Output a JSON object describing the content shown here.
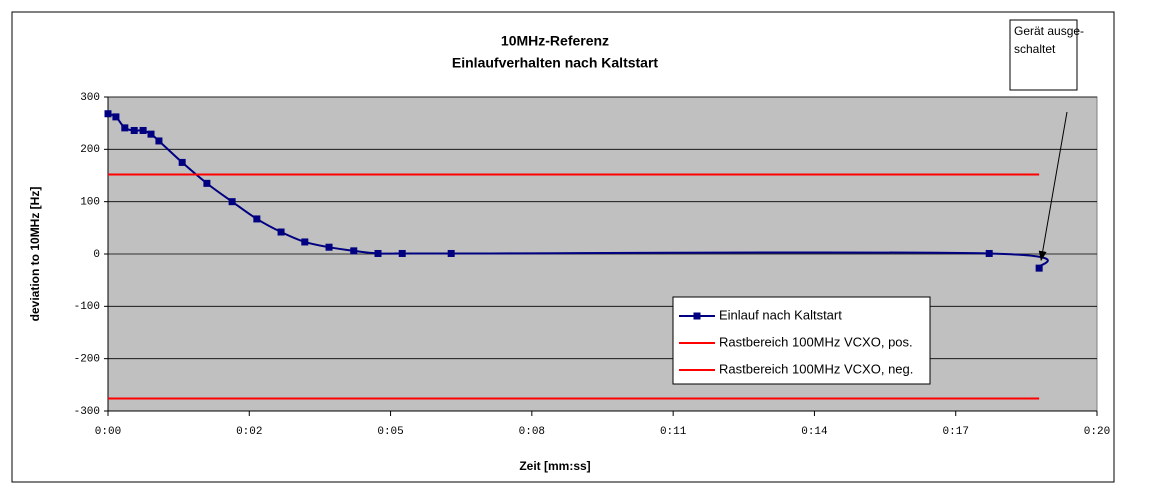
{
  "chart_data": {
    "type": "line",
    "title": "10MHz-Referenz",
    "subtitle": "Einlaufverhalten nach Kaltstart",
    "x_label": "Zeit [mm:ss]",
    "y_label": "deviation to 10MHz [Hz]",
    "xlim": [
      0,
      20
    ],
    "xticks": [
      {
        "value": 0,
        "label": "0:00"
      },
      {
        "value": 2.857,
        "label": "0:02"
      },
      {
        "value": 5.714,
        "label": "0:05"
      },
      {
        "value": 8.571,
        "label": "0:08"
      },
      {
        "value": 11.429,
        "label": "0:11"
      },
      {
        "value": 14.286,
        "label": "0:14"
      },
      {
        "value": 17.143,
        "label": "0:17"
      },
      {
        "value": 20,
        "label": "0:20"
      }
    ],
    "ylim": [
      -300,
      300
    ],
    "yticks": [
      -300,
      -200,
      -100,
      0,
      100,
      200,
      300
    ],
    "grid": true,
    "legend": "right",
    "series": [
      {
        "name": "Einlauf nach Kaltstart",
        "color": "#000080",
        "markers": true,
        "smooth": true,
        "x": [
          0,
          0.16,
          0.34,
          0.53,
          0.71,
          0.87,
          1.03,
          1.5,
          2.0,
          2.51,
          3.01,
          3.5,
          3.98,
          4.47,
          4.97,
          5.46,
          5.95,
          6.94,
          17.82,
          18.83
        ],
        "values": [
          268,
          262,
          241,
          236,
          236,
          229,
          216,
          175,
          135,
          100,
          67,
          42,
          23,
          13,
          6,
          1,
          1,
          1,
          1,
          -27
        ]
      },
      {
        "name": "Rastbereich 100MHz VCXO, pos.",
        "color": "#ff0000",
        "markers": false,
        "smooth": false,
        "x": [
          0,
          18.83
        ],
        "values": [
          152,
          152
        ]
      },
      {
        "name": "Rastbereich 100MHz VCXO, neg.",
        "color": "#ff0000",
        "markers": false,
        "smooth": false,
        "x": [
          0,
          18.83
        ],
        "values": [
          -276,
          -276
        ]
      }
    ],
    "annotation": {
      "text": [
        "Gerät ausge-",
        "schaltet"
      ]
    }
  }
}
